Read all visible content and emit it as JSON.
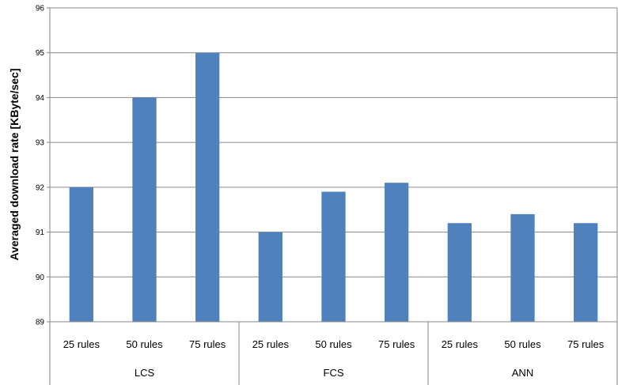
{
  "chart_data": {
    "type": "bar",
    "title": "",
    "xlabel": "",
    "ylabel": "Averaged download rate [KByte/sec]",
    "ylim": [
      89,
      96
    ],
    "yticks": [
      89,
      90,
      91,
      92,
      93,
      94,
      95,
      96
    ],
    "grid": true,
    "legend": "none",
    "bar_color": "#4F81BD",
    "groups": [
      {
        "name": "LCS",
        "categories": [
          "25 rules",
          "50 rules",
          "75 rules"
        ],
        "values": [
          92.0,
          94.0,
          95.0
        ]
      },
      {
        "name": "FCS",
        "categories": [
          "25 rules",
          "50 rules",
          "75 rules"
        ],
        "values": [
          91.0,
          91.9,
          92.1
        ]
      },
      {
        "name": "ANN",
        "categories": [
          "25 rules",
          "50 rules",
          "75 rules"
        ],
        "values": [
          91.2,
          91.4,
          91.2
        ]
      }
    ]
  }
}
